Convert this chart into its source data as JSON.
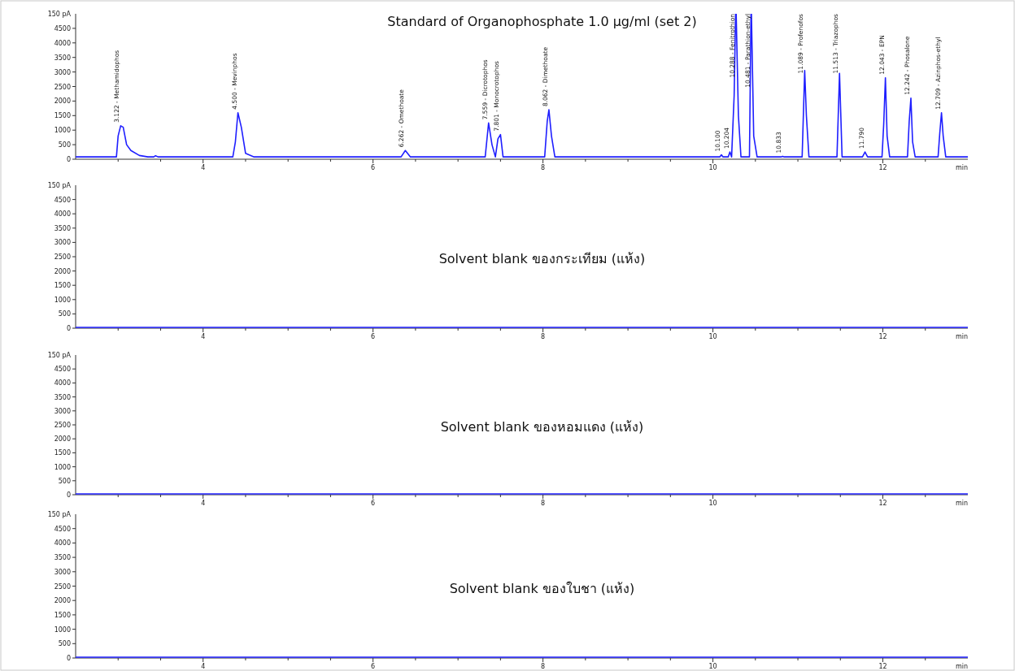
{
  "chart_data": [
    {
      "type": "line",
      "title": "Standard of Organophosphate 1.0 µg/ml (set 2)",
      "xlabel": "min",
      "ylabel": "150 pA",
      "xlim": [
        2.5,
        13.0
      ],
      "ylim": [
        0,
        5000
      ],
      "xticks": [
        {
          "value": 3,
          "label": null
        },
        {
          "value": 3.5,
          "label": null
        },
        4,
        {
          "value": 4.5,
          "label": null
        },
        {
          "value": 5,
          "label": null
        },
        {
          "value": 5.5,
          "label": null
        },
        6,
        {
          "value": 6.5,
          "label": null
        },
        {
          "value": 7,
          "label": null
        },
        {
          "value": 7.5,
          "label": null
        },
        8,
        {
          "value": 8.5,
          "label": null
        },
        {
          "value": 9,
          "label": null
        },
        {
          "value": 9.5,
          "label": null
        },
        10,
        {
          "value": 10.5,
          "label": null
        },
        {
          "value": 11,
          "label": null
        },
        {
          "value": 11.5,
          "label": null
        },
        12,
        {
          "value": 12.5,
          "label": null
        }
      ],
      "yticks": [
        0,
        500,
        1000,
        1500,
        2000,
        2500,
        3000,
        3500,
        4000,
        4500
      ],
      "series": [
        {
          "color": "#1f1fff",
          "x": [
            2.5,
            2.98,
            3.0,
            3.03,
            3.06,
            3.1,
            3.15,
            3.25,
            3.35,
            3.42,
            3.44,
            3.47,
            4.35,
            4.38,
            4.41,
            4.45,
            4.5,
            4.6,
            6.33,
            6.38,
            6.44,
            7.32,
            7.36,
            7.4,
            7.44,
            7.47,
            7.5,
            7.53,
            8.02,
            8.05,
            8.07,
            8.1,
            8.14,
            10.08,
            10.1,
            10.12,
            10.18,
            10.2,
            10.22,
            10.25,
            10.27,
            10.3,
            10.33,
            10.43,
            10.45,
            10.48,
            10.52,
            10.8,
            10.82,
            10.84,
            11.05,
            11.08,
            11.1,
            11.13,
            11.46,
            11.49,
            11.52,
            11.76,
            11.79,
            11.82,
            11.99,
            12.01,
            12.03,
            12.05,
            12.08,
            12.29,
            12.31,
            12.33,
            12.35,
            12.38,
            12.65,
            12.67,
            12.69,
            12.71,
            12.74,
            13.0
          ],
          "values": [
            80,
            80,
            800,
            1150,
            1100,
            500,
            300,
            130,
            80,
            80,
            120,
            80,
            80,
            600,
            1600,
            1100,
            200,
            80,
            80,
            300,
            80,
            80,
            1250,
            500,
            80,
            700,
            850,
            80,
            80,
            1300,
            1700,
            800,
            80,
            80,
            150,
            80,
            80,
            250,
            80,
            2200,
            null,
            1500,
            80,
            80,
            null,
            800,
            80,
            80,
            100,
            80,
            80,
            3050,
            1500,
            80,
            80,
            2950,
            80,
            80,
            250,
            80,
            80,
            1200,
            2800,
            800,
            80,
            80,
            1300,
            2100,
            600,
            80,
            80,
            900,
            1600,
            800,
            80,
            80
          ]
        }
      ],
      "annotations": [
        {
          "text": "3.122 - Methamidophos",
          "x": 3.03,
          "y": 1150
        },
        {
          "text": "4.500 - Mevinphos",
          "x": 4.41,
          "y": 1600
        },
        {
          "text": "6.262 - Omethoate",
          "x": 6.38,
          "y": 300
        },
        {
          "text": "7.559 - Dicrotophos",
          "x": 7.36,
          "y": 1250
        },
        {
          "text": "7.801 - Monocrotophos",
          "x": 7.5,
          "y": 850
        },
        {
          "text": "8.062 - Dimethoate",
          "x": 8.07,
          "y": 1700
        },
        {
          "text": "10.100",
          "x": 10.1,
          "y": 150
        },
        {
          "text": "10.204",
          "x": 10.2,
          "y": 250
        },
        {
          "text": "10.288 - Fenitrothion",
          "x": 10.27
        },
        {
          "text": "10.481 - Parathion-ethyl",
          "x": 10.45
        },
        {
          "text": "10.833",
          "x": 10.82,
          "y": 100
        },
        {
          "text": "11.089 - Profenofos",
          "x": 11.08,
          "y": 3050
        },
        {
          "text": "11.513 - Triazophos",
          "x": 11.49,
          "y": 2950
        },
        {
          "text": "11.790",
          "x": 11.79,
          "y": 250
        },
        {
          "text": "12.043 - EPN",
          "x": 12.03,
          "y": 2800
        },
        {
          "text": "12.242 - Phosalone",
          "x": 12.33,
          "y": 2100
        },
        {
          "text": "12.709 - Azinphos-ethyl",
          "x": 12.69,
          "y": 1600
        }
      ]
    },
    {
      "type": "line",
      "title": "Solvent blank ของกระเทียม (แห้ง)",
      "xlabel": "min",
      "ylabel": "150 pA",
      "xlim": [
        2.5,
        13.0
      ],
      "ylim": [
        0,
        5000
      ],
      "xticks": [
        {
          "value": 3,
          "label": null
        },
        {
          "value": 3.5,
          "label": null
        },
        4,
        {
          "value": 4.5,
          "label": null
        },
        {
          "value": 5,
          "label": null
        },
        {
          "value": 5.5,
          "label": null
        },
        6,
        {
          "value": 6.5,
          "label": null
        },
        {
          "value": 7,
          "label": null
        },
        {
          "value": 7.5,
          "label": null
        },
        8,
        {
          "value": 8.5,
          "label": null
        },
        {
          "value": 9,
          "label": null
        },
        {
          "value": 9.5,
          "label": null
        },
        10,
        {
          "value": 10.5,
          "label": null
        },
        {
          "value": 11,
          "label": null
        },
        {
          "value": 11.5,
          "label": null
        },
        12,
        {
          "value": 12.5,
          "label": null
        }
      ],
      "yticks": [
        0,
        500,
        1000,
        1500,
        2000,
        2500,
        3000,
        3500,
        4000,
        4500
      ],
      "series": [
        {
          "color": "#1f1fff",
          "x": [
            2.5,
            13.0
          ],
          "values": [
            30,
            30
          ]
        }
      ]
    },
    {
      "type": "line",
      "title": "Solvent blank ของหอมแดง (แห้ง)",
      "xlabel": "min",
      "ylabel": "150 pA",
      "xlim": [
        2.5,
        13.0
      ],
      "ylim": [
        0,
        5000
      ],
      "xticks": [
        {
          "value": 3,
          "label": null
        },
        {
          "value": 3.5,
          "label": null
        },
        4,
        {
          "value": 4.5,
          "label": null
        },
        {
          "value": 5,
          "label": null
        },
        {
          "value": 5.5,
          "label": null
        },
        6,
        {
          "value": 6.5,
          "label": null
        },
        {
          "value": 7,
          "label": null
        },
        {
          "value": 7.5,
          "label": null
        },
        8,
        {
          "value": 8.5,
          "label": null
        },
        {
          "value": 9,
          "label": null
        },
        {
          "value": 9.5,
          "label": null
        },
        10,
        {
          "value": 10.5,
          "label": null
        },
        {
          "value": 11,
          "label": null
        },
        {
          "value": 11.5,
          "label": null
        },
        12,
        {
          "value": 12.5,
          "label": null
        }
      ],
      "yticks": [
        0,
        500,
        1000,
        1500,
        2000,
        2500,
        3000,
        3500,
        4000,
        4500
      ],
      "series": [
        {
          "color": "#1f1fff",
          "x": [
            2.5,
            13.0
          ],
          "values": [
            30,
            30
          ]
        }
      ]
    },
    {
      "type": "line",
      "title": "Solvent blank ของใบชา (แห้ง)",
      "xlabel": "min",
      "ylabel": "150 pA",
      "xlim": [
        2.5,
        13.0
      ],
      "ylim": [
        0,
        5000
      ],
      "xticks": [
        {
          "value": 3,
          "label": null
        },
        {
          "value": 3.5,
          "label": null
        },
        4,
        {
          "value": 4.5,
          "label": null
        },
        {
          "value": 5,
          "label": null
        },
        {
          "value": 5.5,
          "label": null
        },
        6,
        {
          "value": 6.5,
          "label": null
        },
        {
          "value": 7,
          "label": null
        },
        {
          "value": 7.5,
          "label": null
        },
        8,
        {
          "value": 8.5,
          "label": null
        },
        {
          "value": 9,
          "label": null
        },
        {
          "value": 9.5,
          "label": null
        },
        10,
        {
          "value": 10.5,
          "label": null
        },
        {
          "value": 11,
          "label": null
        },
        {
          "value": 11.5,
          "label": null
        },
        12,
        {
          "value": 12.5,
          "label": null
        }
      ],
      "yticks": [
        0,
        500,
        1000,
        1500,
        2000,
        2500,
        3000,
        3500,
        4000,
        4500
      ],
      "series": [
        {
          "color": "#1f1fff",
          "x": [
            2.5,
            13.0
          ],
          "values": [
            30,
            30
          ]
        }
      ]
    }
  ]
}
